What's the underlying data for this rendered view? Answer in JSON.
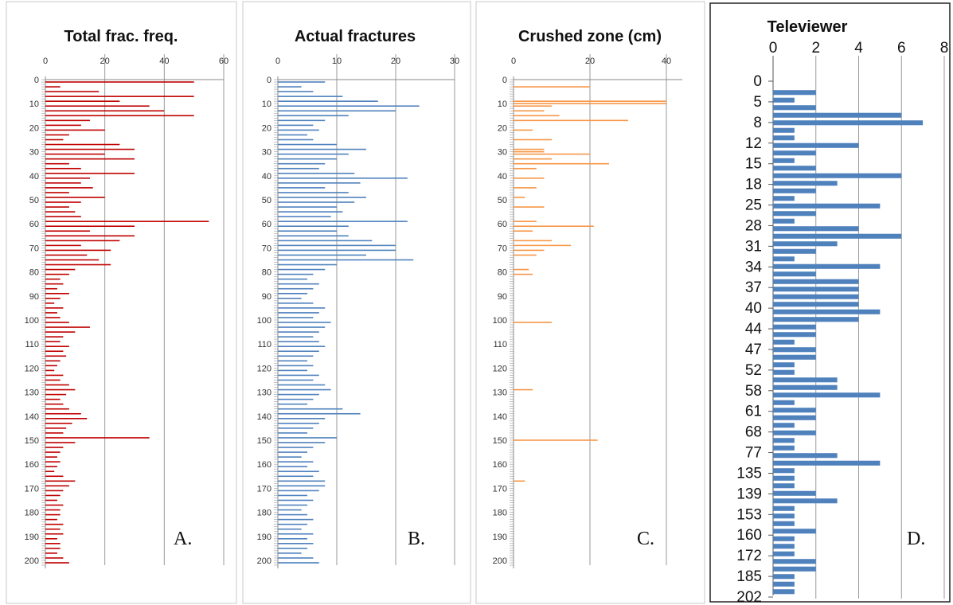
{
  "chart_data": [
    {
      "type": "bar",
      "orientation": "horizontal",
      "title": "Total frac. freq.",
      "panel_label": "A.",
      "xlim": [
        0,
        60
      ],
      "x_ticks": [
        "0",
        "20",
        "40",
        "60"
      ],
      "y_ticks": [
        "0",
        "10",
        "20",
        "30",
        "40",
        "50",
        "60",
        "70",
        "80",
        "90",
        "100",
        "110",
        "120",
        "130",
        "140",
        "150",
        "160",
        "170",
        "180",
        "190",
        "200"
      ],
      "ylim": [
        0,
        202
      ],
      "color": "#c00000",
      "depths": [
        1,
        3,
        5,
        7,
        9,
        11,
        13,
        15,
        17,
        19,
        21,
        23,
        25,
        27,
        29,
        31,
        33,
        35,
        37,
        39,
        41,
        43,
        45,
        47,
        49,
        51,
        53,
        55,
        57,
        59,
        61,
        63,
        65,
        67,
        69,
        71,
        73,
        75,
        77,
        79,
        81,
        83,
        85,
        87,
        89,
        91,
        93,
        95,
        97,
        99,
        101,
        103,
        105,
        107,
        109,
        111,
        113,
        115,
        117,
        119,
        121,
        123,
        125,
        127,
        129,
        131,
        133,
        135,
        137,
        139,
        141,
        143,
        145,
        147,
        149,
        151,
        153,
        155,
        157,
        159,
        161,
        163,
        165,
        167,
        169,
        171,
        173,
        175,
        177,
        179,
        181,
        183,
        185,
        187,
        189,
        191,
        193,
        195,
        197,
        199,
        201
      ],
      "values": [
        50,
        5,
        18,
        50,
        25,
        35,
        40,
        50,
        15,
        12,
        20,
        8,
        6,
        25,
        30,
        20,
        30,
        8,
        12,
        30,
        15,
        12,
        16,
        8,
        20,
        12,
        8,
        10,
        12,
        55,
        30,
        15,
        30,
        25,
        12,
        22,
        14,
        18,
        22,
        10,
        8,
        5,
        6,
        4,
        8,
        5,
        3,
        6,
        4,
        5,
        8,
        15,
        10,
        6,
        5,
        8,
        6,
        7,
        5,
        4,
        3,
        6,
        5,
        8,
        10,
        7,
        5,
        6,
        8,
        12,
        14,
        9,
        7,
        6,
        35,
        10,
        6,
        5,
        4,
        5,
        4,
        3,
        6,
        10,
        8,
        6,
        5,
        4,
        6,
        5,
        5,
        4,
        6,
        5,
        6,
        4,
        5,
        5,
        4,
        6,
        8
      ]
    },
    {
      "type": "bar",
      "orientation": "horizontal",
      "title": "Actual fractures",
      "panel_label": "B.",
      "xlim": [
        0,
        30
      ],
      "x_ticks": [
        "0",
        "10",
        "20",
        "30"
      ],
      "y_ticks": [
        "0",
        "10",
        "20",
        "30",
        "40",
        "50",
        "60",
        "70",
        "80",
        "90",
        "100",
        "110",
        "120",
        "130",
        "140",
        "150",
        "160",
        "170",
        "180",
        "190",
        "200"
      ],
      "ylim": [
        0,
        202
      ],
      "color": "#4f81bd",
      "depths": [
        1,
        3,
        5,
        7,
        9,
        11,
        13,
        15,
        17,
        19,
        21,
        23,
        25,
        27,
        29,
        31,
        33,
        35,
        37,
        39,
        41,
        43,
        45,
        47,
        49,
        51,
        53,
        55,
        57,
        59,
        61,
        63,
        65,
        67,
        69,
        71,
        73,
        75,
        77,
        79,
        81,
        83,
        85,
        87,
        89,
        91,
        93,
        95,
        97,
        99,
        101,
        103,
        105,
        107,
        109,
        111,
        113,
        115,
        117,
        119,
        121,
        123,
        125,
        127,
        129,
        131,
        133,
        135,
        137,
        139,
        141,
        143,
        145,
        147,
        149,
        151,
        153,
        155,
        157,
        159,
        161,
        163,
        165,
        167,
        169,
        171,
        173,
        175,
        177,
        179,
        181,
        183,
        185,
        187,
        189,
        191,
        193,
        195,
        197,
        199,
        201
      ],
      "values": [
        8,
        4,
        6,
        11,
        17,
        24,
        20,
        12,
        8,
        6,
        7,
        5,
        6,
        10,
        15,
        12,
        10,
        8,
        7,
        13,
        22,
        14,
        8,
        12,
        15,
        13,
        10,
        11,
        9,
        22,
        12,
        10,
        12,
        16,
        20,
        20,
        15,
        23,
        10,
        8,
        6,
        5,
        7,
        6,
        5,
        4,
        6,
        8,
        7,
        6,
        9,
        8,
        7,
        6,
        7,
        8,
        7,
        6,
        5,
        6,
        5,
        7,
        6,
        8,
        9,
        7,
        6,
        5,
        11,
        14,
        8,
        7,
        6,
        5,
        10,
        8,
        6,
        5,
        4,
        6,
        5,
        7,
        6,
        8,
        8,
        7,
        5,
        6,
        5,
        4,
        5,
        6,
        5,
        4,
        6,
        5,
        6,
        5,
        4,
        6,
        7
      ]
    },
    {
      "type": "bar",
      "orientation": "horizontal",
      "title": "Crushed zone (cm)",
      "panel_label": "C.",
      "xlim": [
        0,
        40
      ],
      "x_ticks": [
        "0",
        "20",
        "40"
      ],
      "y_ticks": [
        "0",
        "10",
        "20",
        "30",
        "40",
        "50",
        "60",
        "70",
        "80",
        "90",
        "100",
        "110",
        "120",
        "130",
        "140",
        "150",
        "160",
        "170",
        "180",
        "190",
        "200"
      ],
      "ylim": [
        0,
        202
      ],
      "color": "#f79646",
      "depths": [
        3,
        9,
        10,
        11,
        13,
        15,
        17,
        21,
        25,
        29,
        30,
        31,
        33,
        35,
        37,
        41,
        45,
        49,
        53,
        59,
        61,
        63,
        67,
        69,
        71,
        73,
        79,
        81,
        101,
        129,
        150,
        167
      ],
      "values": [
        20,
        40,
        40,
        10,
        8,
        12,
        30,
        5,
        10,
        8,
        8,
        20,
        10,
        25,
        6,
        8,
        6,
        3,
        8,
        6,
        21,
        5,
        10,
        15,
        8,
        6,
        4,
        5,
        10,
        5,
        22,
        3
      ]
    },
    {
      "type": "bar",
      "orientation": "horizontal",
      "title": "Televiewer",
      "panel_label": "D.",
      "xlim": [
        0,
        8
      ],
      "x_ticks": [
        "0",
        "2",
        "4",
        "6",
        "8"
      ],
      "y_ticks": [
        "0",
        "5",
        "8",
        "12",
        "15",
        "18",
        "25",
        "28",
        "31",
        "34",
        "37",
        "40",
        "44",
        "47",
        "52",
        "58",
        "61",
        "68",
        "77",
        "135",
        "139",
        "153",
        "160",
        "172",
        "185",
        "202"
      ],
      "color": "#4f81bd",
      "values": [
        0,
        2,
        1,
        2,
        6,
        7,
        1,
        1,
        4,
        2,
        1,
        2,
        6,
        3,
        2,
        1,
        5,
        2,
        1,
        4,
        6,
        3,
        2,
        1,
        5,
        2,
        4,
        4,
        4,
        4,
        5,
        4,
        2,
        2,
        1,
        2,
        2,
        1,
        1,
        3,
        3,
        5,
        1,
        2,
        2,
        1,
        2,
        1,
        1,
        3,
        5,
        1,
        1,
        1,
        2,
        3,
        1,
        1,
        1,
        2,
        1,
        1,
        1,
        2,
        2,
        1,
        1,
        1
      ]
    }
  ]
}
